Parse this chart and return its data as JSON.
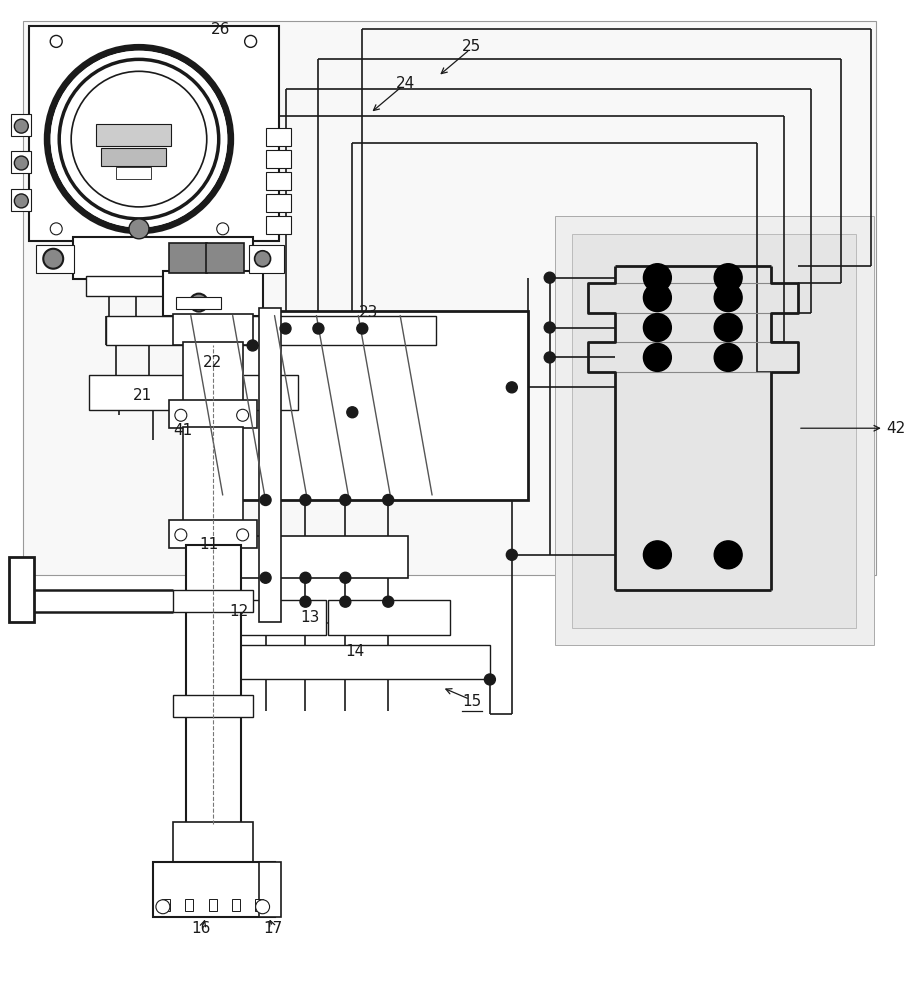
{
  "bg": "#ffffff",
  "lc": "#1a1a1a",
  "gray": "#aaaaaa",
  "lgray": "#dddddd",
  "fw": 9.11,
  "fh": 10.0,
  "dpi": 100
}
